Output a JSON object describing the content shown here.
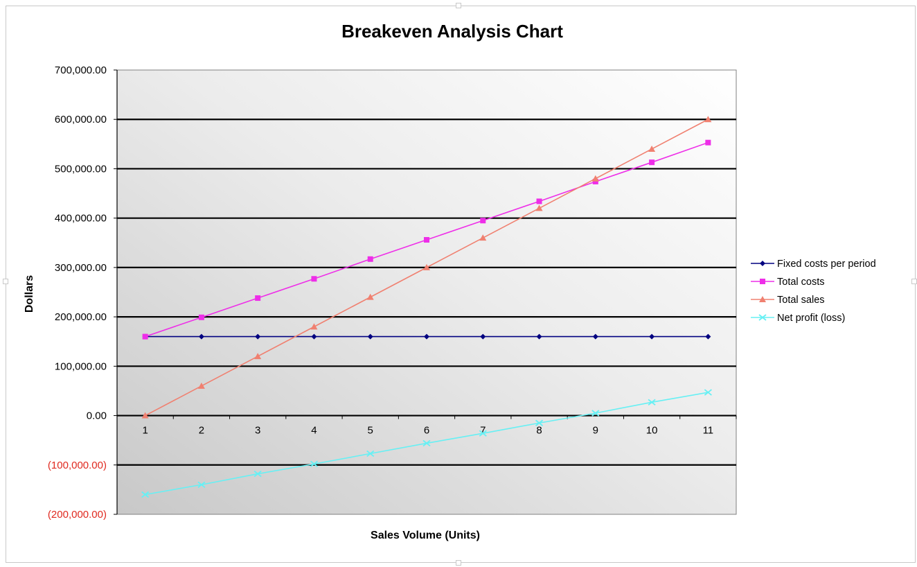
{
  "chart_data": {
    "type": "line",
    "title": "Breakeven Analysis Chart",
    "xlabel": "Sales Volume (Units)",
    "ylabel": "Dollars",
    "x": [
      1,
      2,
      3,
      4,
      5,
      6,
      7,
      8,
      9,
      10,
      11
    ],
    "ylim": [
      -200000,
      700000
    ],
    "y_ticks": [
      {
        "value": 700000,
        "label": "700,000.00"
      },
      {
        "value": 600000,
        "label": "600,000.00"
      },
      {
        "value": 500000,
        "label": "500,000.00"
      },
      {
        "value": 400000,
        "label": "400,000.00"
      },
      {
        "value": 300000,
        "label": "300,000.00"
      },
      {
        "value": 200000,
        "label": "200,000.00"
      },
      {
        "value": 100000,
        "label": "100,000.00"
      },
      {
        "value": 0,
        "label": "0.00"
      },
      {
        "value": -100000,
        "label": "(100,000.00)"
      },
      {
        "value": -200000,
        "label": "(200,000.00)"
      }
    ],
    "negative_tick_color": "#e0291f",
    "grid": true,
    "legend_position": "right",
    "series": [
      {
        "name": "Fixed costs per period",
        "color": "#000080",
        "marker": "diamond",
        "values": [
          160000,
          160000,
          160000,
          160000,
          160000,
          160000,
          160000,
          160000,
          160000,
          160000,
          160000
        ]
      },
      {
        "name": "Total costs",
        "color": "#ee2ee8",
        "marker": "square",
        "values": [
          160000,
          199000,
          238000,
          277000,
          317000,
          356000,
          395000,
          434000,
          474000,
          513000,
          553000
        ]
      },
      {
        "name": "Total sales",
        "color": "#f08070",
        "marker": "triangle",
        "values": [
          0,
          60000,
          120000,
          180000,
          240000,
          300000,
          360000,
          420000,
          480000,
          540000,
          600000
        ]
      },
      {
        "name": "Net profit (loss)",
        "color": "#66f0f4",
        "marker": "x",
        "values": [
          -160000,
          -140000,
          -118000,
          -98000,
          -77000,
          -56000,
          -36000,
          -15000,
          5000,
          27000,
          47000
        ]
      }
    ]
  }
}
